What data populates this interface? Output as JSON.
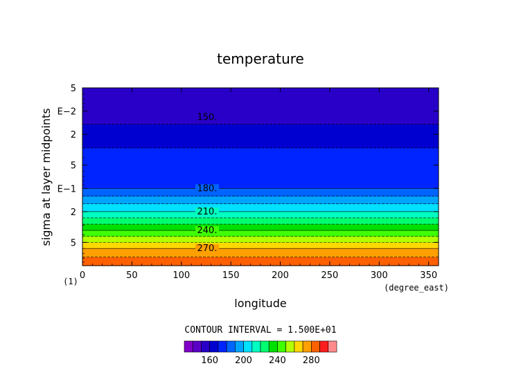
{
  "chart_data": {
    "type": "heatmap",
    "title": "temperature",
    "xlabel": "longitude",
    "ylabel": "sigma at layer midpoints",
    "x_unit_label": "(degree_east)",
    "y_corner_label": "(1)",
    "xlim": [
      0,
      360
    ],
    "ylim": [
      0.005,
      1.0
    ],
    "y_scale": "log",
    "y_reversed": true,
    "x_ticks": [
      "0",
      "50",
      "100",
      "150",
      "200",
      "250",
      "300",
      "350"
    ],
    "x_tick_values": [
      0,
      50,
      100,
      150,
      200,
      250,
      300,
      350
    ],
    "y_ticks": [
      "5",
      "E−2",
      "2",
      "5",
      "E−1",
      "2",
      "5"
    ],
    "y_tick_values": [
      0.005,
      0.01,
      0.02,
      0.05,
      0.1,
      0.2,
      0.5
    ],
    "contour_interval_text": "CONTOUR INTERVAL = 1.500E+01",
    "contour_labels": [
      {
        "text": "150.",
        "value": 150,
        "sigma": 0.012
      },
      {
        "text": "180.",
        "value": 180,
        "sigma": 0.1
      },
      {
        "text": "210.",
        "value": 210,
        "sigma": 0.2
      },
      {
        "text": "240.",
        "value": 240,
        "sigma": 0.35
      },
      {
        "text": "270.",
        "value": 270,
        "sigma": 0.6
      }
    ],
    "temperature_profile": {
      "sigma": [
        0.005,
        0.012,
        0.03,
        0.1,
        0.2,
        0.35,
        0.6,
        1.0
      ],
      "temperature": [
        150,
        157,
        170,
        180,
        210,
        240,
        270,
        290
      ]
    },
    "colorbar": {
      "labels": [
        "160",
        "200",
        "240",
        "280"
      ],
      "label_values": [
        160,
        200,
        240,
        280
      ],
      "levels": [
        140,
        150,
        160,
        170,
        180,
        190,
        200,
        210,
        220,
        230,
        240,
        250,
        260,
        270,
        280,
        290,
        300
      ],
      "colors": [
        "#8000c8",
        "#5c00c8",
        "#2800c8",
        "#0000d0",
        "#0024ff",
        "#0064ff",
        "#00a4ff",
        "#00e0ff",
        "#00ffc0",
        "#00ff70",
        "#00e000",
        "#40ff00",
        "#b4ff00",
        "#ffd800",
        "#ffa000",
        "#ff6000",
        "#ff1e1e",
        "#ff8c8c"
      ]
    },
    "grid": false,
    "legend": "colorbar-bottom"
  }
}
